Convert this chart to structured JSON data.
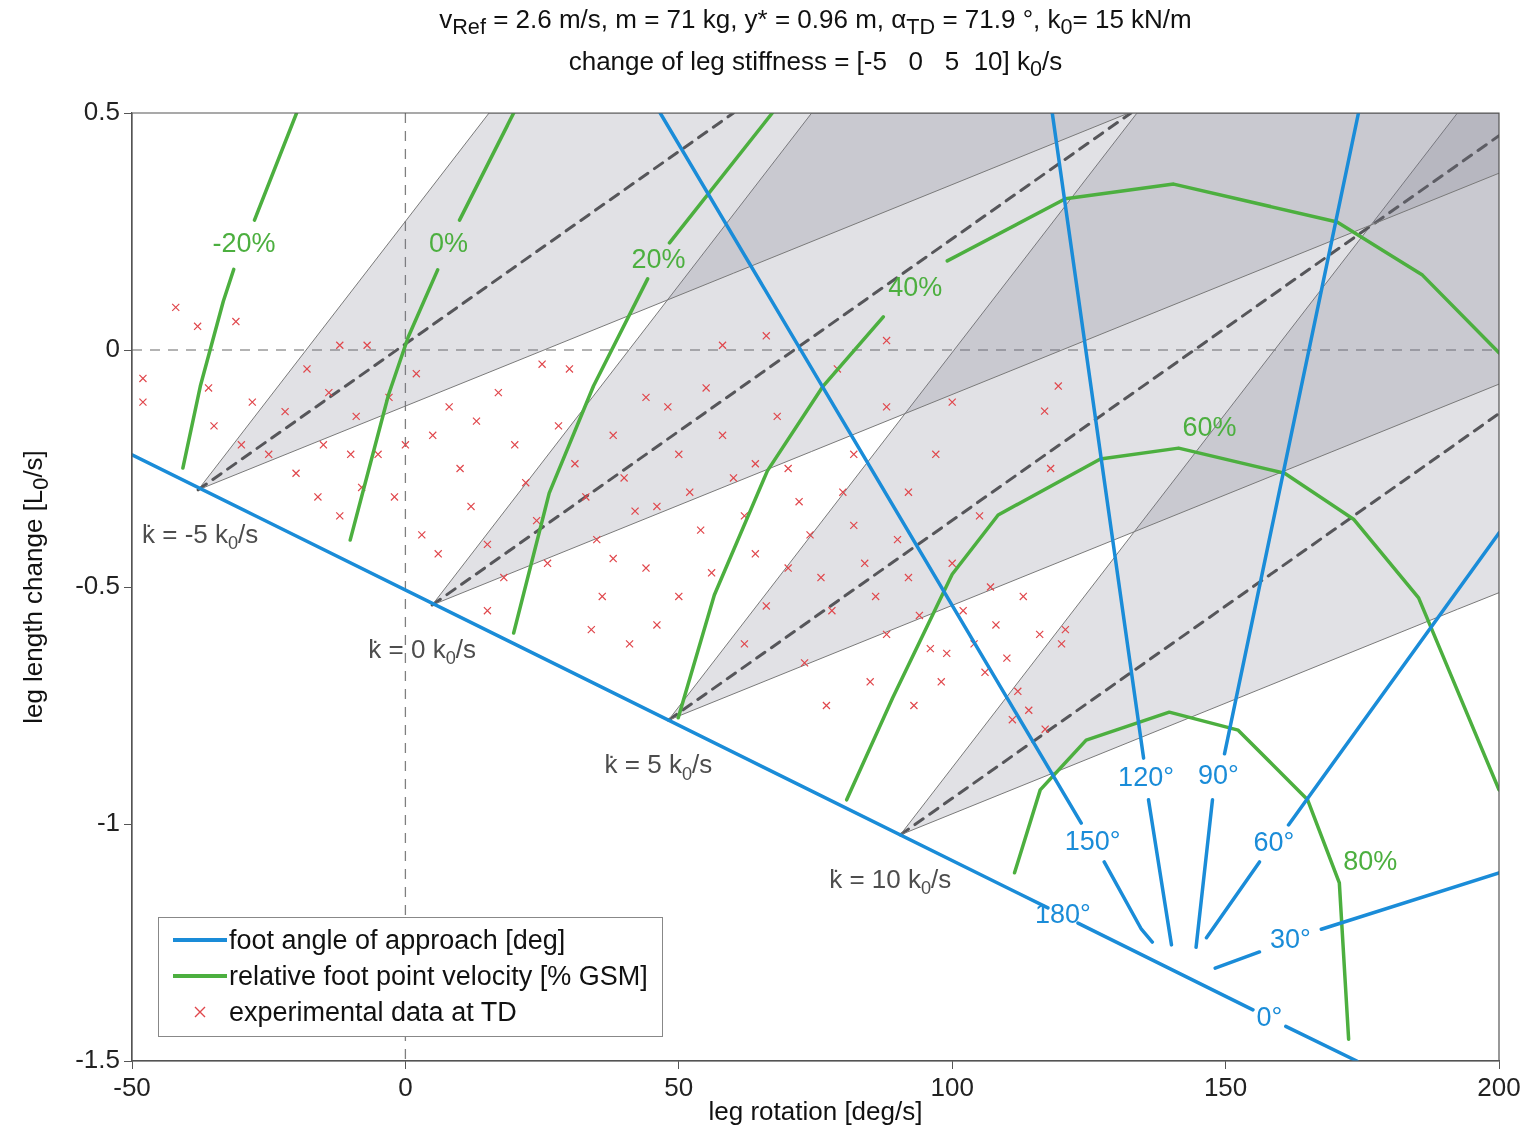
{
  "chart_data": {
    "type": "line",
    "title": "v$_{Ref}$ = 2.6 m/s, m = 71 kg, y* = 0.96 m, α$_{TD}$ = 71.9 °, k$_{0}$= 15 kN/m",
    "subtitle": "change of leg stiffness = [-5   0   5  10] k$_{0}$/s",
    "xlabel": "leg rotation [deg/s]",
    "ylabel": "leg length change [L$_{0}$/s]",
    "xlim": [
      -50,
      200
    ],
    "ylim": [
      -1.5,
      0.5
    ],
    "xticks": [
      -50,
      0,
      50,
      100,
      150,
      200
    ],
    "yticks": [
      -1.5,
      -1,
      -0.5,
      0,
      0.5
    ],
    "legend": "bottom left",
    "ref_lines": [
      {
        "axis": "x",
        "value": 0,
        "color": "#7f7f7f",
        "line_style": "dashed"
      },
      {
        "axis": "y",
        "value": 0,
        "color": "#9a9a9a",
        "line_style": "dashed"
      }
    ],
    "series": [
      {
        "name": "foot angle of approach [deg]",
        "color": "#1a8cd8",
        "x": [
          -50,
          117.5,
          120,
          123,
          155,
          158,
          161,
          174
        ],
        "values": [
          -0.221,
          -1.177,
          null,
          -1.209,
          -1.392,
          null,
          -1.427,
          -1.5
        ]
      },
      {
        "color": "#1a8cd8",
        "x": [
          46.6,
          123.6,
          125.7,
          127.8,
          134.6,
          136.6
        ],
        "values": [
          0.5,
          -0.998,
          null,
          -1.08,
          -1.222,
          -1.249
        ]
      },
      {
        "color": "#1a8cd8",
        "x": [
          118.3,
          135.0,
          135.5,
          135.9,
          140.1
        ],
        "values": [
          0.5,
          -0.861,
          null,
          -0.949,
          -1.255
        ]
      },
      {
        "color": "#1a8cd8",
        "x": [
          174.3,
          149.8,
          148.9,
          147.6,
          144.6
        ],
        "values": [
          0.5,
          -0.852,
          null,
          -0.949,
          -1.26
        ]
      },
      {
        "color": "#1a8cd8",
        "x": [
          200,
          161.5,
          158.9,
          156.2,
          146.5
        ],
        "values": [
          -0.386,
          -1.002,
          null,
          -1.08,
          -1.24
        ]
      },
      {
        "color": "#1a8cd8",
        "x": [
          200,
          167.5,
          162,
          156.2,
          148.1
        ],
        "values": [
          -1.103,
          -1.222,
          null,
          -1.27,
          -1.304
        ]
      },
      {
        "name": "relative foot point velocity [% GSM]",
        "color": "#4caf3f",
        "x": [
          -40.7,
          -37.5,
          -33.3,
          -31.4,
          -29.5,
          -27.6,
          -19.9
        ],
        "values": [
          -0.249,
          -0.076,
          0.103,
          0.17,
          null,
          0.274,
          0.5
        ]
      },
      {
        "color": "#4caf3f",
        "x": [
          -10.1,
          -3.1,
          0.5,
          5.9,
          7.5,
          9.9,
          19.8
        ],
        "values": [
          -0.401,
          -0.095,
          0.027,
          0.169,
          null,
          0.274,
          0.5
        ]
      },
      {
        "color": "#4caf3f",
        "x": [
          19.8,
          26.3,
          34.4,
          44.3,
          46,
          48.3,
          67.1
        ],
        "values": [
          -0.597,
          -0.302,
          -0.076,
          0.15,
          null,
          0.226,
          0.5
        ]
      },
      {
        "color": "#4caf3f",
        "x": [
          49.9,
          56.5,
          66.2,
          76.4,
          87.4,
          93,
          99.1,
          120.7,
          140.5,
          170.4,
          186,
          200
        ],
        "values": [
          -0.776,
          -0.517,
          -0.255,
          -0.076,
          0.07,
          null,
          0.188,
          0.319,
          0.35,
          0.27,
          0.158,
          -0.006
        ]
      },
      {
        "color": "#4caf3f",
        "x": [
          80.7,
          89.1,
          100,
          108.4,
          127.1,
          141.4,
          160.8,
          173.4,
          185.3,
          200
        ],
        "values": [
          -0.949,
          -0.734,
          -0.473,
          -0.348,
          -0.23,
          -0.207,
          -0.26,
          -0.357,
          -0.523,
          -0.928
        ]
      },
      {
        "color": "#4caf3f",
        "x": [
          111.4,
          116.1,
          124.5,
          139.7,
          152.3,
          165,
          170.8,
          172.5
        ],
        "values": [
          -1.103,
          -0.928,
          -0.823,
          -0.764,
          -0.802,
          -0.949,
          -1.124,
          -1.454
        ]
      },
      {
        "type": "scatter",
        "name": "experimental data at TD",
        "color": "#e0474c",
        "marker": "cross",
        "x": [
          -42,
          -38,
          -31,
          -48,
          -48,
          -36,
          -35,
          -28,
          -22,
          -18,
          -14,
          -25,
          -20,
          -15,
          -12,
          -7,
          -9,
          -5,
          -3,
          -16,
          -12,
          -8,
          -2,
          2,
          5,
          8,
          10,
          12,
          3,
          6,
          15,
          13,
          17,
          20,
          22,
          24,
          18,
          26,
          28,
          31,
          33,
          30,
          35,
          36,
          38,
          40,
          42,
          44,
          46,
          41,
          48,
          50,
          52,
          54,
          56,
          55,
          58,
          60,
          62,
          64,
          66,
          62,
          68,
          70,
          72,
          74,
          76,
          78,
          73,
          80,
          82,
          84,
          86,
          88,
          85,
          90,
          92,
          94,
          96,
          98,
          93,
          100,
          102,
          104,
          106,
          108,
          110,
          112,
          114,
          120,
          113,
          105,
          97,
          88,
          79,
          100,
          118,
          34,
          50,
          44,
          25,
          66,
          88,
          58,
          99,
          77,
          15,
          64,
          46,
          38,
          70,
          82,
          92,
          107,
          116,
          0,
          -10,
          -30,
          111,
          117,
          119.4,
          116.9,
          120.7
        ],
        "values": [
          0.09,
          0.05,
          0.06,
          -0.06,
          -0.11,
          -0.08,
          -0.16,
          -0.11,
          -0.13,
          -0.04,
          -0.09,
          -0.22,
          -0.26,
          -0.2,
          0.01,
          0.01,
          -0.14,
          -0.22,
          -0.1,
          -0.31,
          -0.35,
          -0.29,
          -0.31,
          -0.05,
          -0.18,
          -0.12,
          -0.25,
          -0.33,
          -0.39,
          -0.43,
          -0.41,
          -0.15,
          -0.09,
          -0.2,
          -0.28,
          -0.36,
          -0.48,
          -0.45,
          -0.16,
          -0.24,
          -0.31,
          -0.04,
          -0.4,
          -0.52,
          -0.18,
          -0.27,
          -0.34,
          -0.46,
          -0.58,
          -0.62,
          -0.12,
          -0.22,
          -0.3,
          -0.38,
          -0.47,
          -0.08,
          -0.18,
          -0.27,
          -0.35,
          -0.43,
          -0.54,
          -0.62,
          -0.14,
          -0.25,
          -0.32,
          -0.39,
          -0.48,
          -0.55,
          -0.66,
          -0.3,
          -0.37,
          -0.45,
          -0.52,
          -0.6,
          -0.7,
          -0.4,
          -0.48,
          -0.56,
          -0.63,
          -0.7,
          -0.75,
          -0.45,
          -0.55,
          -0.62,
          -0.68,
          -0.58,
          -0.65,
          -0.72,
          -0.76,
          -0.62,
          -0.52,
          -0.35,
          -0.22,
          -0.12,
          -0.04,
          -0.11,
          -0.25,
          -0.59,
          -0.52,
          -0.1,
          -0.03,
          0.03,
          0.02,
          0.01,
          -0.64,
          -0.75,
          -0.55,
          -0.24,
          -0.33,
          -0.44,
          -0.46,
          -0.22,
          -0.3,
          -0.5,
          -0.6,
          -0.2,
          -0.22,
          -0.2,
          -0.78,
          -0.8,
          -0.076,
          -0.129,
          -0.59
        ]
      },
      {
        "name": "k̇ = -5 k$_{0}$/s",
        "color": "#4d4d4d",
        "line_style": "dashed",
        "x": [
          -37.9,
          15.3,
          60.0,
          132.3
        ],
        "values": [
          -0.295,
          0.137,
          0.5,
          null
        ],
        "lower": [
          -0.295,
          -0.047,
          0.162,
          0.5
        ],
        "upper": [
          -0.295,
          0.5,
          0.5,
          0.5
        ]
      },
      {
        "name": "k̇ = 0 k$_{0}$/s",
        "color": "#4d4d4d",
        "line_style": "dashed",
        "x": [
          4.9,
          74.3,
          132.7,
          200
        ],
        "values": [
          -0.538,
          0.026,
          0.5,
          null
        ],
        "lower": [
          -0.538,
          -0.214,
          0.059,
          0.373
        ],
        "upper": [
          -0.538,
          0.5,
          0.5,
          0.5
        ]
      },
      {
        "name": "k̇ = 5 k$_{0}$/s",
        "color": "#4d4d4d",
        "line_style": "dashed",
        "x": [
          48.1,
          133.8,
          200
        ],
        "values": [
          -0.781,
          -0.085,
          0.452
        ],
        "lower": [
          -0.781,
          -0.381,
          -0.072
        ],
        "upper": [
          -0.781,
          0.5,
          0.5
        ]
      },
      {
        "name": "k̇ = 10 k$_{0}$/s",
        "color": "#4d4d4d",
        "line_style": "dashed",
        "x": [
          90.5,
          192.4,
          200
        ],
        "values": [
          -1.023,
          -0.196,
          -0.134
        ],
        "lower": [
          -1.023,
          -0.547,
          -0.512
        ],
        "upper": [
          -1.023,
          0.5,
          0.5
        ]
      }
    ],
    "annotations": [
      {
        "text": "-20%",
        "x": -31.4,
        "y": 0.17
      },
      {
        "text": "0%",
        "x": 5.9,
        "y": 0.169
      },
      {
        "text": "20%",
        "x": 44.3,
        "y": 0.15
      },
      {
        "text": "40%",
        "x": 87.4,
        "y": 0.07
      },
      {
        "text": "60%",
        "x": 141.4,
        "y": -0.207
      },
      {
        "text": "80%",
        "x": 170.8,
        "y": -1.124
      },
      {
        "text": "0°",
        "x": 155,
        "y": -1.392
      },
      {
        "text": "30°",
        "x": 167.5,
        "y": -1.222
      },
      {
        "text": "60°",
        "x": 161.5,
        "y": -1.002
      },
      {
        "text": "90°",
        "x": 149.8,
        "y": -0.852
      },
      {
        "text": "120°",
        "x": 135.0,
        "y": -0.861
      },
      {
        "text": "150°",
        "x": 123.6,
        "y": -0.998
      },
      {
        "text": "180°",
        "x": 117.5,
        "y": -1.177
      }
    ]
  }
}
